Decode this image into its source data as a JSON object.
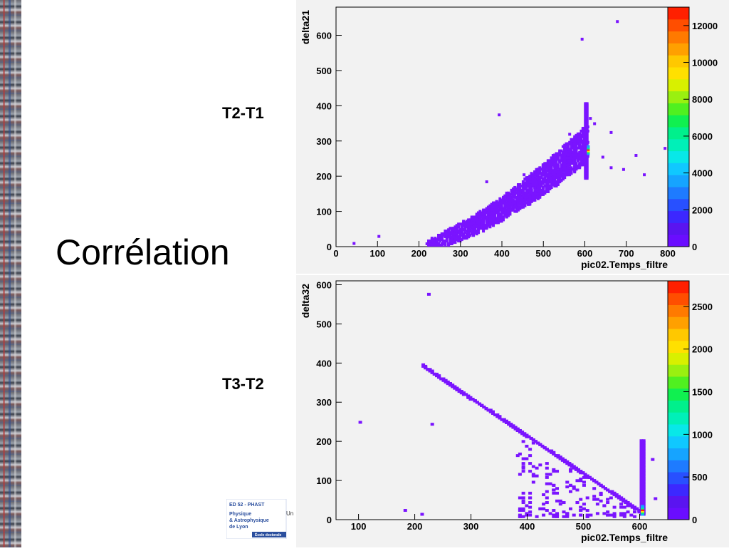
{
  "slide": {
    "title": "Corrélation",
    "label_top": "T2-T1",
    "label_bottom": "T3-T2",
    "logo_lines": [
      "ED 52 - PHAST",
      "Physique",
      "& Astrophysique",
      "de Lyon",
      "École doctorale"
    ],
    "logo_partial": "Un"
  },
  "colorscale": [
    "#6a0dff",
    "#5a14f0",
    "#3c28ff",
    "#2850ff",
    "#1e7bff",
    "#16a4ff",
    "#10c8ff",
    "#08e8e8",
    "#00f0b8",
    "#00f08c",
    "#10f050",
    "#50f020",
    "#9af010",
    "#d8f000",
    "#ffe000",
    "#ffc800",
    "#ffa000",
    "#ff7a00",
    "#ff4e00",
    "#ff2000"
  ],
  "chart_data": [
    {
      "type": "heatmap",
      "xlabel": "pic02.Temps_filtre",
      "ylabel": "delta21",
      "xlim": [
        0,
        800
      ],
      "ylim": [
        0,
        680
      ],
      "xticks": [
        0,
        100,
        200,
        300,
        400,
        500,
        600,
        700,
        800
      ],
      "yticks": [
        0,
        100,
        200,
        300,
        400,
        500,
        600
      ],
      "zlim": [
        0,
        13000
      ],
      "zticks": [
        0,
        2000,
        4000,
        6000,
        8000,
        10000,
        12000
      ],
      "background": "#f2f2f2",
      "point_color": "#7a14ff",
      "distribution": {
        "band": {
          "x_start": 215,
          "x_end": 603,
          "y_start": 5,
          "y_end": 290,
          "width": 70
        },
        "vertical_line": {
          "x": 598,
          "y_start": 190,
          "y_end": 405
        },
        "peak": {
          "x": 603,
          "y": 270,
          "max_count": 12000
        },
        "outliers": [
          [
            40,
            5
          ],
          [
            100,
            25
          ],
          [
            390,
            370
          ],
          [
            640,
            250
          ],
          [
            660,
            220
          ],
          [
            690,
            215
          ],
          [
            720,
            255
          ],
          [
            740,
            200
          ],
          [
            790,
            275
          ],
          [
            660,
            320
          ],
          [
            590,
            585
          ],
          [
            675,
            635
          ],
          [
            450,
            200
          ],
          [
            480,
            215
          ],
          [
            520,
            255
          ],
          [
            560,
            315
          ],
          [
            610,
            360
          ],
          [
            620,
            345
          ],
          [
            360,
            180
          ]
        ]
      }
    },
    {
      "type": "heatmap",
      "xlabel": "pic02.Temps_filtre",
      "ylabel": "delta32",
      "xlim": [
        60,
        650
      ],
      "ylim": [
        0,
        610
      ],
      "xticks": [
        100,
        200,
        300,
        400,
        500,
        600
      ],
      "yticks": [
        0,
        100,
        200,
        300,
        400,
        500,
        600
      ],
      "zlim": [
        0,
        2800
      ],
      "zticks": [
        0,
        500,
        1000,
        1500,
        2000,
        2500
      ],
      "background": "#f2f2f2",
      "point_color": "#7a14ff",
      "distribution": {
        "diagonal": {
          "x_start": 210,
          "y_start": 390,
          "x_end": 600,
          "y_end": 15
        },
        "vertical_line": {
          "x": 600,
          "y_start": 10,
          "y_end": 200
        },
        "peak": {
          "x": 600,
          "y": 20,
          "max_count": 2500
        },
        "scatter_region": {
          "x_min": 380,
          "x_max": 600,
          "y_min": 5,
          "y_max": 195
        },
        "outliers": [
          [
            222,
            572
          ],
          [
            100,
            245
          ],
          [
            228,
            240
          ],
          [
            210,
            10
          ],
          [
            180,
            20
          ],
          [
            380,
            160
          ],
          [
            620,
            150
          ],
          [
            625,
            50
          ]
        ]
      }
    }
  ]
}
